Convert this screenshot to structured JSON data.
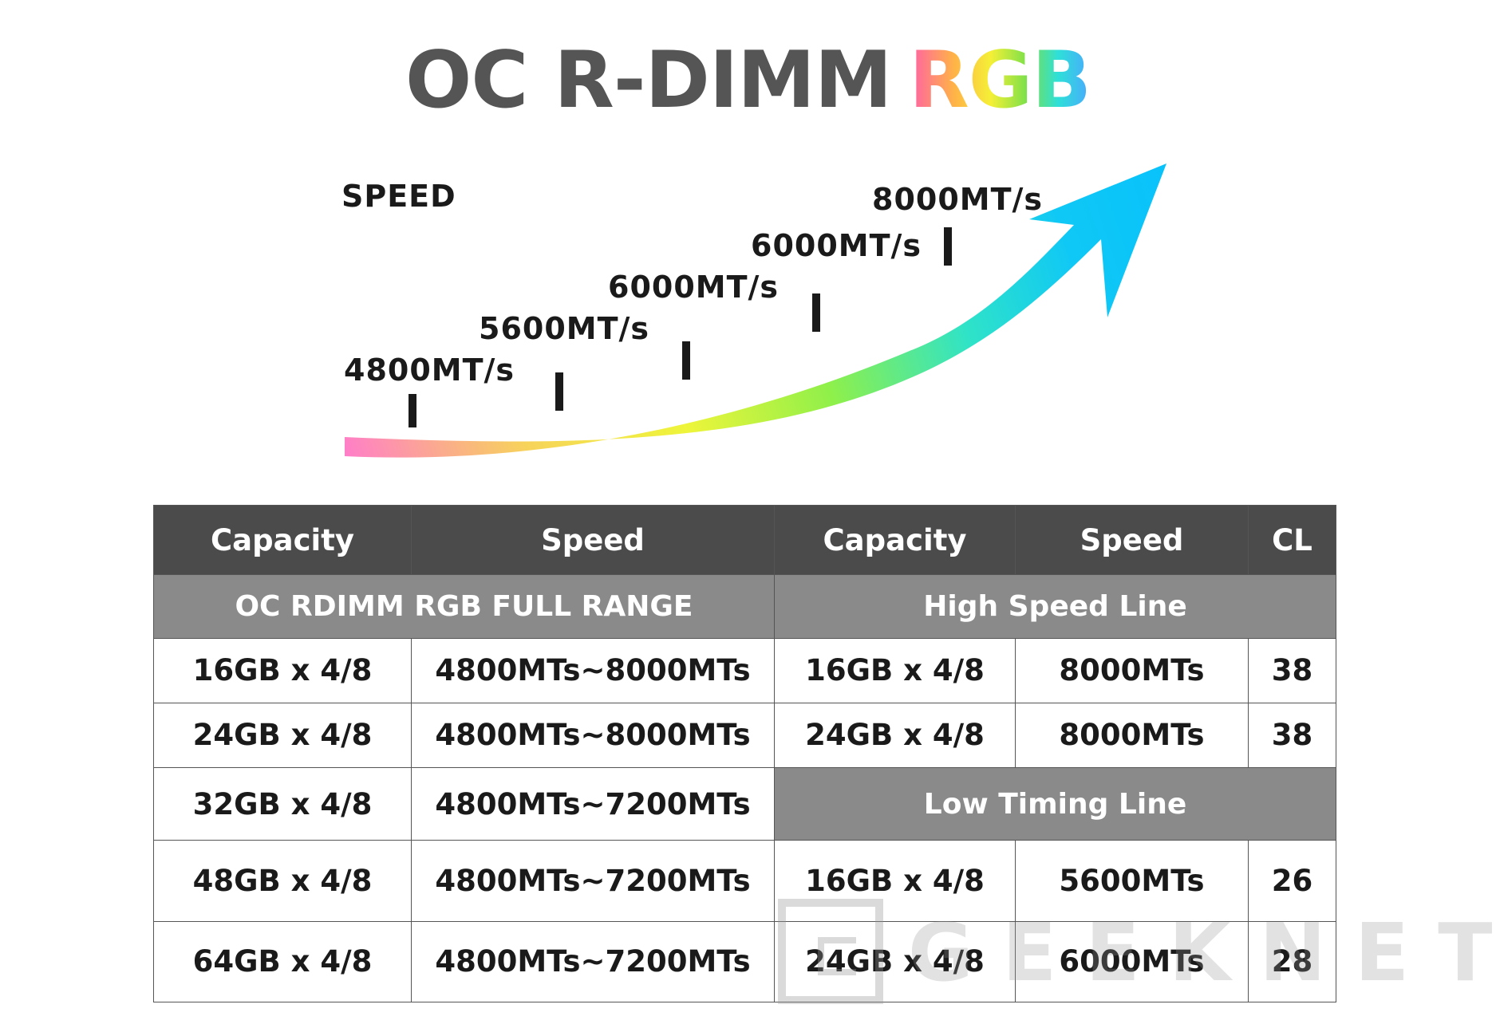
{
  "title": {
    "main": "OC R-DIMM",
    "accent": "RGB"
  },
  "speed_chart": {
    "label": "SPEED",
    "tiers": [
      "4800MT/s",
      "5600MT/s",
      "6000MT/s",
      "6000MT/s",
      "8000MT/s"
    ],
    "arrow_gradient": [
      "#ff7ec8",
      "#f7e14a",
      "#e8f53a",
      "#8ff04a",
      "#2fe3c8",
      "#10c8f5",
      "#08c2fb"
    ]
  },
  "table": {
    "headers": [
      "Capacity",
      "Speed",
      "Capacity",
      "Speed",
      "CL"
    ],
    "groups": {
      "full_range": "OC RDIMM RGB FULL RANGE",
      "high_speed": "High Speed Line",
      "low_timing": "Low Timing Line"
    },
    "full_range_rows": [
      {
        "capacity": "16GB x 4/8",
        "speed": "4800MTs~8000MTs"
      },
      {
        "capacity": "24GB x 4/8",
        "speed": "4800MTs~8000MTs"
      },
      {
        "capacity": "32GB x 4/8",
        "speed": "4800MTs~7200MTs"
      },
      {
        "capacity": "48GB x 4/8",
        "speed": "4800MTs~7200MTs"
      },
      {
        "capacity": "64GB x 4/8",
        "speed": "4800MTs~7200MTs"
      }
    ],
    "high_speed_rows": [
      {
        "capacity": "16GB x 4/8",
        "speed": "8000MTs",
        "cl": "38"
      },
      {
        "capacity": "24GB x 4/8",
        "speed": "8000MTs",
        "cl": "38"
      }
    ],
    "low_timing_rows": [
      {
        "capacity": "16GB x 4/8",
        "speed": "5600MTs",
        "cl": "26"
      },
      {
        "capacity": "24GB x 4/8",
        "speed": "6000MTs",
        "cl": "28"
      }
    ]
  },
  "watermark": "GEEKNETIC",
  "colors": {
    "header_bg": "#4b4b4b",
    "group_bg": "#8a8a8a",
    "title_gray": "#555555"
  }
}
